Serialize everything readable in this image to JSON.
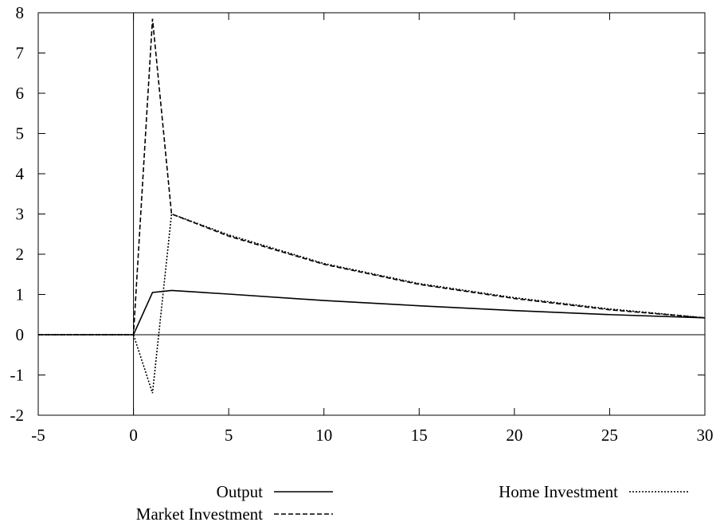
{
  "chart_data": {
    "type": "line",
    "title": "",
    "xlabel": "",
    "ylabel": "",
    "xlim": [
      -5,
      30
    ],
    "ylim": [
      -2,
      8
    ],
    "x_ticks": [
      -5,
      0,
      5,
      10,
      15,
      20,
      25,
      30
    ],
    "y_ticks": [
      -2,
      -1,
      0,
      1,
      2,
      3,
      4,
      5,
      6,
      7,
      8
    ],
    "grid": false,
    "zero_lines": true,
    "legend": "bottom",
    "series": [
      {
        "name": "Output",
        "style": "solid",
        "x": [
          -5,
          0,
          1,
          2,
          5,
          10,
          15,
          20,
          25,
          30
        ],
        "y": [
          0,
          0,
          1.05,
          1.1,
          1.01,
          0.85,
          0.72,
          0.6,
          0.5,
          0.42
        ]
      },
      {
        "name": "Market Investment",
        "style": "dashed",
        "x": [
          -5,
          0,
          1,
          2,
          5,
          10,
          15,
          20,
          25,
          30
        ],
        "y": [
          0,
          0,
          7.85,
          3.0,
          2.45,
          1.75,
          1.25,
          0.9,
          0.62,
          0.42
        ]
      },
      {
        "name": "Home Investment",
        "style": "dotted",
        "x": [
          -5,
          0,
          1,
          2,
          5,
          10,
          15,
          20,
          25,
          30
        ],
        "y": [
          0,
          0,
          -1.45,
          3.0,
          2.48,
          1.77,
          1.27,
          0.92,
          0.64,
          0.42
        ]
      }
    ]
  }
}
